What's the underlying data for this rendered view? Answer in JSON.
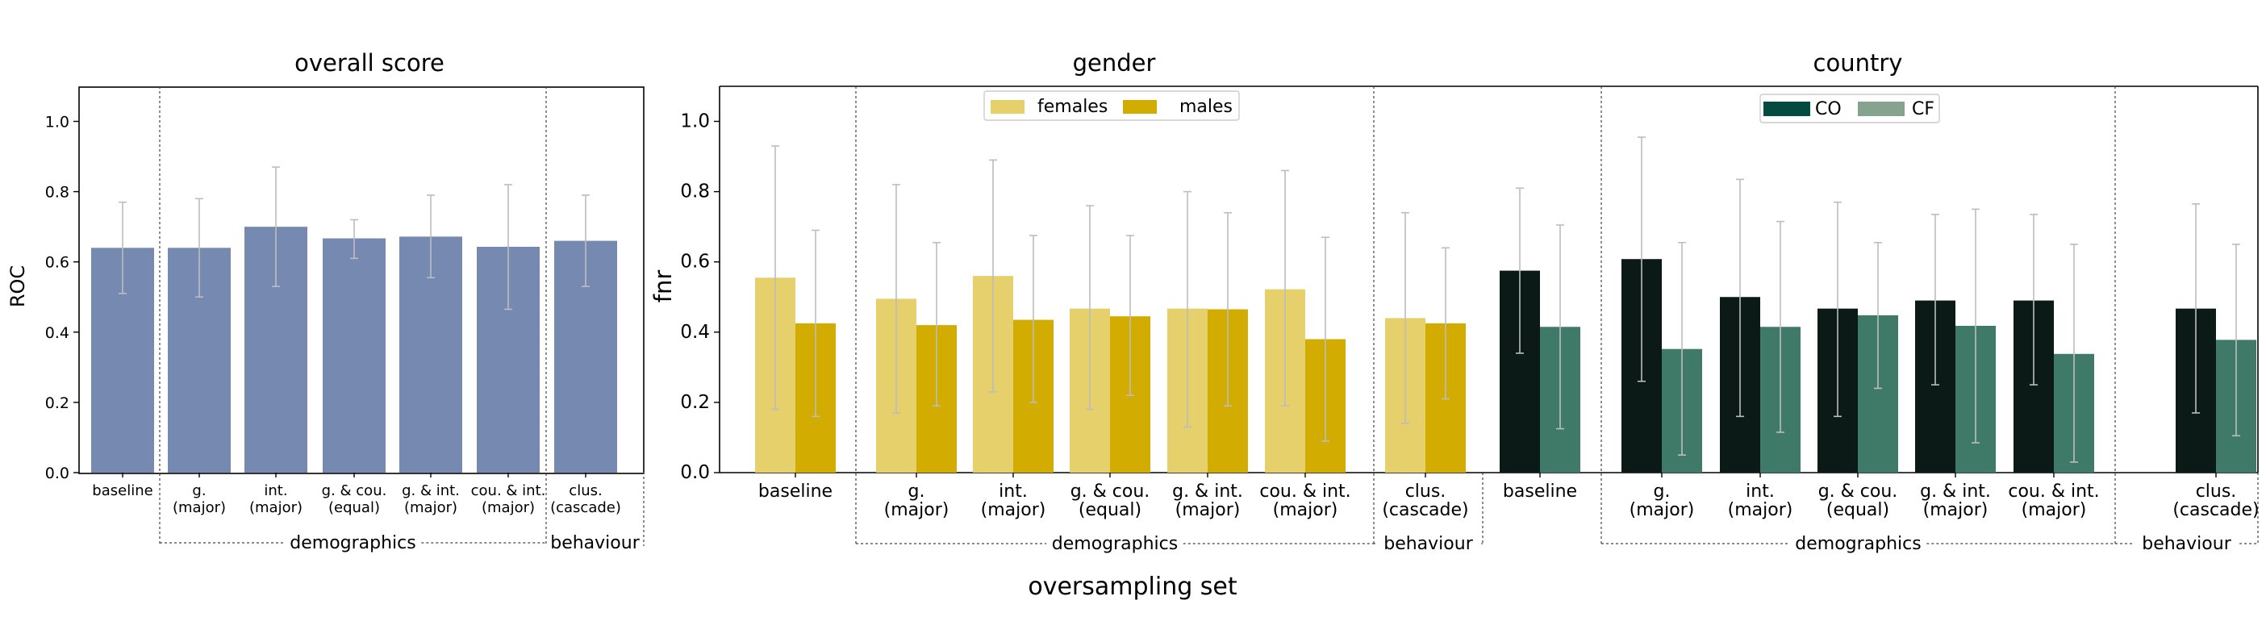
{
  "colors": {
    "overall_bar": "#7589b1",
    "females": "#e6d06c",
    "males": "#d2ac00",
    "CO": "#0b1a17",
    "CF": "#3f7967",
    "legend_CO": "#044a3f",
    "legend_CF": "#86a390",
    "errbar": "#bdbdbd",
    "group_label": "#777777"
  },
  "xlabel": "oversampling set",
  "chart_data": [
    {
      "type": "bar",
      "title": "overall score",
      "ylabel": "ROC",
      "ylim": [
        0,
        1.1
      ],
      "yticks": [
        "0.0",
        "0.2",
        "0.4",
        "0.6",
        "0.8",
        "1.0"
      ],
      "categories": [
        "baseline",
        "g.\n(major)",
        "int.\n(major)",
        "g. & cou.\n(equal)",
        "g. & int.\n(major)",
        "cou. & int.\n(major)",
        "clus.\n(cascade)"
      ],
      "series": [
        {
          "name": "ROC",
          "values": [
            0.64,
            0.64,
            0.7,
            0.667,
            0.672,
            0.643,
            0.66
          ],
          "err_low": [
            0.51,
            0.5,
            0.53,
            0.61,
            0.555,
            0.465,
            0.53
          ],
          "err_high": [
            0.77,
            0.78,
            0.87,
            0.72,
            0.79,
            0.82,
            0.79
          ]
        }
      ],
      "groups": [
        {
          "label": "demographics",
          "from": 1,
          "to": 5
        },
        {
          "label": "behaviour",
          "from": 6,
          "to": 6
        }
      ]
    },
    {
      "type": "bar",
      "title": "gender",
      "ylabel": "fnr",
      "ylim": [
        0,
        1.1
      ],
      "yticks": [
        "0.0",
        "0.2",
        "0.4",
        "0.6",
        "0.8",
        "1.0"
      ],
      "categories": [
        "baseline",
        "g.\n(major)",
        "int.\n(major)",
        "g. & cou.\n(equal)",
        "g. & int.\n(major)",
        "cou. & int.\n(major)",
        "clus.\n(cascade)"
      ],
      "legend": [
        "females",
        "males"
      ],
      "series": [
        {
          "name": "females",
          "values": [
            0.555,
            0.495,
            0.56,
            0.467,
            0.467,
            0.522,
            0.44
          ],
          "err_low": [
            0.18,
            0.17,
            0.23,
            0.18,
            0.13,
            0.19,
            0.14
          ],
          "err_high": [
            0.93,
            0.82,
            0.89,
            0.76,
            0.8,
            0.86,
            0.74
          ]
        },
        {
          "name": "males",
          "values": [
            0.425,
            0.42,
            0.435,
            0.445,
            0.465,
            0.38,
            0.425
          ],
          "err_low": [
            0.16,
            0.19,
            0.2,
            0.22,
            0.19,
            0.09,
            0.21
          ],
          "err_high": [
            0.69,
            0.655,
            0.675,
            0.675,
            0.74,
            0.67,
            0.64
          ]
        }
      ],
      "groups": [
        {
          "label": "demographics",
          "from": 1,
          "to": 5
        },
        {
          "label": "behaviour",
          "from": 6,
          "to": 6
        }
      ]
    },
    {
      "type": "bar",
      "title": "country",
      "ylabel": "",
      "ylim": [
        0,
        1.1
      ],
      "categories": [
        "baseline",
        "g.\n(major)",
        "int.\n(major)",
        "g. & cou.\n(equal)",
        "g. & int.\n(major)",
        "cou. & int.\n(major)",
        "clus.\n(cascade)"
      ],
      "legend": [
        "CO",
        "CF"
      ],
      "series": [
        {
          "name": "CO",
          "values": [
            0.575,
            0.608,
            0.5,
            0.467,
            0.49,
            0.49,
            0.467
          ],
          "err_low": [
            0.34,
            0.26,
            0.16,
            0.16,
            0.25,
            0.25,
            0.17
          ],
          "err_high": [
            0.81,
            0.955,
            0.835,
            0.77,
            0.735,
            0.735,
            0.765
          ]
        },
        {
          "name": "CF",
          "values": [
            0.415,
            0.352,
            0.415,
            0.448,
            0.418,
            0.338,
            0.378
          ],
          "err_low": [
            0.125,
            0.05,
            0.115,
            0.24,
            0.085,
            0.03,
            0.105
          ],
          "err_high": [
            0.705,
            0.655,
            0.715,
            0.655,
            0.75,
            0.65,
            0.65
          ]
        }
      ],
      "groups": [
        {
          "label": "demographics",
          "from": 1,
          "to": 5
        },
        {
          "label": "behaviour",
          "from": 6,
          "to": 6
        }
      ]
    }
  ]
}
